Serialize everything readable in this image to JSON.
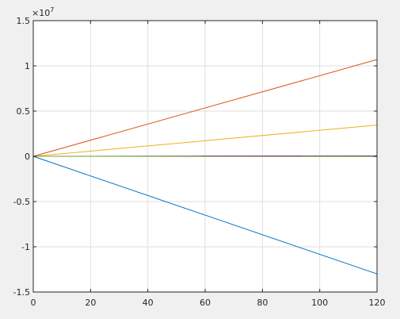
{
  "chart_data": {
    "type": "line",
    "title": "",
    "xlabel": "",
    "ylabel": "",
    "xlim": [
      0,
      120
    ],
    "ylim": [
      -15000000,
      15000000
    ],
    "grid": true,
    "y_exponent_label": "×10",
    "y_exponent_power": "7",
    "x_ticks": [
      0,
      20,
      40,
      60,
      80,
      100,
      120
    ],
    "x_tick_labels": [
      "0",
      "20",
      "40",
      "60",
      "80",
      "100",
      "120"
    ],
    "y_ticks": [
      -15000000,
      -10000000,
      -5000000,
      0,
      5000000,
      10000000,
      15000000
    ],
    "y_tick_labels": [
      "-1.5",
      "-1",
      "-0.5",
      "0",
      "0.5",
      "1",
      "1.5"
    ],
    "series": [
      {
        "color": "#0072BD",
        "x": [
          0,
          120
        ],
        "y": [
          0,
          -13000000
        ]
      },
      {
        "color": "#D95319",
        "x": [
          0,
          120
        ],
        "y": [
          0,
          10700000
        ]
      },
      {
        "color": "#EDB120",
        "x": [
          0,
          120
        ],
        "y": [
          0,
          3450000
        ]
      },
      {
        "color": "#7E2F8E",
        "x": [
          0,
          120
        ],
        "y": [
          0,
          60000
        ]
      },
      {
        "color": "#77AC30",
        "x": [
          0,
          120
        ],
        "y": [
          0,
          -20000
        ]
      }
    ]
  }
}
